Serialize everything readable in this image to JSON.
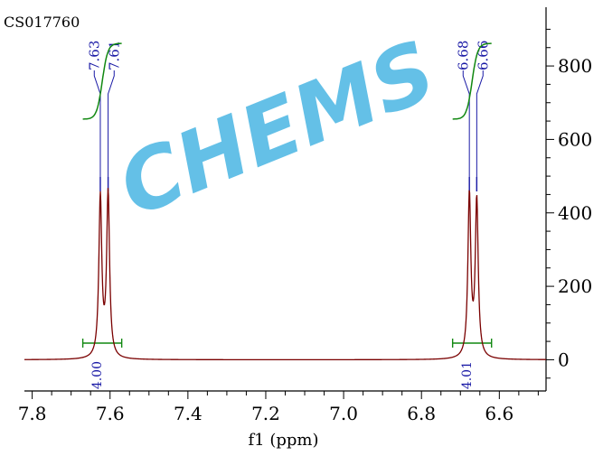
{
  "sample_id": "CS017760",
  "watermark_text": "CHEMS",
  "colors": {
    "spectrum": "#7a0000",
    "integral": "#118811",
    "peak_label": "#1a1aa6",
    "watermark": "#29a9df",
    "axis": "#000000"
  },
  "chart_data": {
    "type": "line",
    "title": "",
    "xlabel": "f1 (ppm)",
    "ylabel": "",
    "xlim": [
      7.82,
      6.48
    ],
    "ylim": [
      -85,
      960
    ],
    "x_reversed": true,
    "x_ticks": [
      7.8,
      7.6,
      7.4,
      7.2,
      7.0,
      6.8,
      6.6
    ],
    "x_tick_labels": [
      "7.8",
      "7.6",
      "7.4",
      "7.2",
      "7.0",
      "6.8",
      "6.6"
    ],
    "y_ticks": [
      0,
      200,
      400,
      600,
      800
    ],
    "y_tick_labels": [
      "0",
      "200",
      "400",
      "600",
      "800"
    ],
    "peaks": [
      {
        "ppm": 7.625,
        "height": 437
      },
      {
        "ppm": 7.605,
        "height": 447
      },
      {
        "ppm": 6.677,
        "height": 443
      },
      {
        "ppm": 6.658,
        "height": 428
      }
    ],
    "peak_labels": [
      {
        "text": "7.63",
        "ppm": 7.625
      },
      {
        "text": "7.61",
        "ppm": 7.605
      },
      {
        "text": "6.68",
        "ppm": 6.677
      },
      {
        "text": "6.66",
        "ppm": 6.658
      }
    ],
    "integrals": [
      {
        "from": 7.67,
        "to": 7.57,
        "value": "4.00"
      },
      {
        "from": 6.72,
        "to": 6.62,
        "value": "4.01"
      }
    ]
  }
}
